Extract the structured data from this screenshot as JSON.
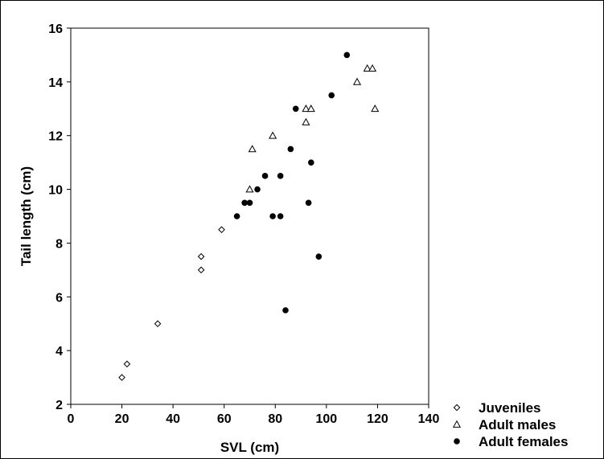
{
  "chart_data": {
    "type": "scatter",
    "title": "",
    "xlabel": "SVL (cm)",
    "ylabel": "Tail length (cm)",
    "xlim": [
      0,
      140
    ],
    "ylim": [
      2,
      16
    ],
    "xticks": [
      0,
      20,
      40,
      60,
      80,
      100,
      120,
      140
    ],
    "yticks": [
      2,
      4,
      6,
      8,
      10,
      12,
      14,
      16
    ],
    "grid": false,
    "legend_position": "bottom-right, outside plot",
    "series": [
      {
        "name": "Juveniles",
        "marker": "open-diamond",
        "points": [
          [
            20,
            3
          ],
          [
            22,
            3.5
          ],
          [
            34,
            5
          ],
          [
            51,
            7
          ],
          [
            51,
            7.5
          ],
          [
            59,
            8.5
          ]
        ]
      },
      {
        "name": "Adult males",
        "marker": "open-triangle",
        "points": [
          [
            70,
            10
          ],
          [
            71,
            11.5
          ],
          [
            79,
            12
          ],
          [
            92,
            12.5
          ],
          [
            92,
            13
          ],
          [
            94,
            13
          ],
          [
            112,
            14
          ],
          [
            116,
            14.5
          ],
          [
            118,
            14.5
          ],
          [
            119,
            13
          ]
        ]
      },
      {
        "name": "Adult females",
        "marker": "filled-circle",
        "points": [
          [
            65,
            9
          ],
          [
            68,
            9.5
          ],
          [
            70,
            9.5
          ],
          [
            73,
            10
          ],
          [
            76,
            10.5
          ],
          [
            79,
            9
          ],
          [
            82,
            10.5
          ],
          [
            82,
            9
          ],
          [
            84,
            5.5
          ],
          [
            86,
            11.5
          ],
          [
            88,
            13
          ],
          [
            93,
            9.5
          ],
          [
            94,
            11
          ],
          [
            97,
            7.5
          ],
          [
            102,
            13.5
          ],
          [
            108,
            15
          ]
        ]
      }
    ]
  }
}
